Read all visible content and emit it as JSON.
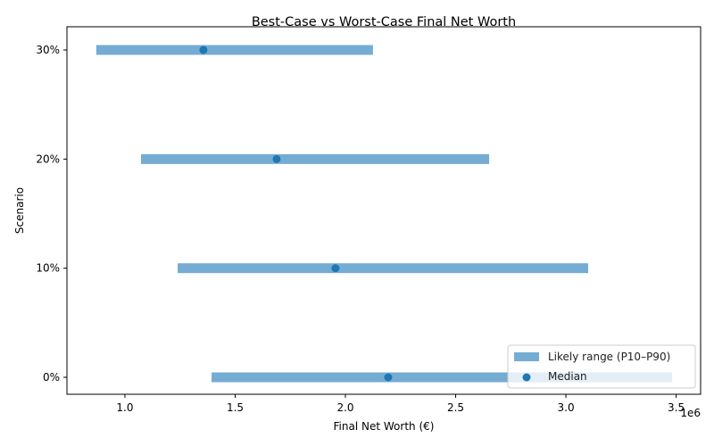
{
  "chart_data": {
    "type": "range-dot",
    "title": "Best-Case vs Worst-Case Final Net Worth",
    "xlabel": "Final Net Worth (€)",
    "ylabel": "Scenario",
    "x_offset_label": "1e6",
    "x_scale": 1000000,
    "xlim": [
      0.737,
      3.611
    ],
    "xticks": [
      1.0,
      1.5,
      2.0,
      2.5,
      3.0,
      3.5
    ],
    "xtick_labels": [
      "1.0",
      "1.5",
      "2.0",
      "2.5",
      "3.0",
      "3.5"
    ],
    "categories": [
      "0%",
      "10%",
      "20%",
      "30%"
    ],
    "series": [
      {
        "name": "Likely range (P10–P90)",
        "type": "range",
        "color": "#75acd3",
        "low": [
          1.393,
          1.239,
          1.073,
          0.87
        ],
        "high": [
          3.482,
          3.101,
          2.652,
          2.125
        ]
      },
      {
        "name": "Median",
        "type": "scatter",
        "color": "#1f77b4",
        "values": [
          2.194,
          1.955,
          1.688,
          1.356
        ]
      }
    ],
    "legend": {
      "position": "bottom-right",
      "entries": [
        "Likely range (P10–P90)",
        "Median"
      ]
    },
    "grid": false
  }
}
